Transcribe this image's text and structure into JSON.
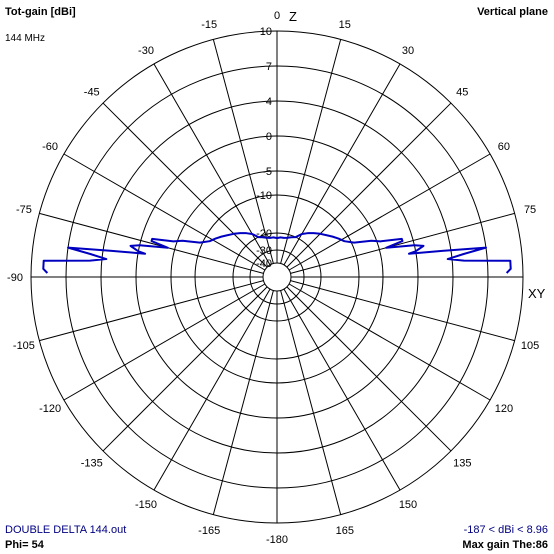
{
  "header": {
    "title": "Tot-gain [dBi]",
    "plane": "Vertical plane",
    "frequency": "144 MHz"
  },
  "footer": {
    "file": "DOUBLE DELTA 144.out",
    "phi": "Phi= 54",
    "range": "-187 < dBi < 8.96",
    "max_gain": "Max gain The:86"
  },
  "colors": {
    "pattern": "#0000c0",
    "grid": "#000000",
    "file_text": "#000080",
    "background": "#ffffff"
  },
  "chart_data": {
    "type": "polar",
    "angle_unit": "degrees",
    "axis_labels": {
      "vertical": "Z",
      "horizontal": "XY"
    },
    "angle_ticks": [
      {
        "deg": 0,
        "label": "0"
      },
      {
        "deg": 15,
        "label": "15"
      },
      {
        "deg": 30,
        "label": "30"
      },
      {
        "deg": 45,
        "label": "45"
      },
      {
        "deg": 60,
        "label": "60"
      },
      {
        "deg": 75,
        "label": "75"
      },
      {
        "deg": 90,
        "label": ""
      },
      {
        "deg": 105,
        "label": "105"
      },
      {
        "deg": 120,
        "label": "120"
      },
      {
        "deg": 135,
        "label": "135"
      },
      {
        "deg": 150,
        "label": "150"
      },
      {
        "deg": 165,
        "label": "165"
      },
      {
        "deg": 180,
        "label": "-180"
      },
      {
        "deg": -165,
        "label": "-165"
      },
      {
        "deg": -150,
        "label": "-150"
      },
      {
        "deg": -135,
        "label": "-135"
      },
      {
        "deg": -120,
        "label": "-120"
      },
      {
        "deg": -105,
        "label": "-105"
      },
      {
        "deg": -90,
        "label": "-90"
      },
      {
        "deg": -75,
        "label": "-75"
      },
      {
        "deg": -60,
        "label": "-60"
      },
      {
        "deg": -45,
        "label": "-45"
      },
      {
        "deg": -30,
        "label": "-30"
      },
      {
        "deg": -15,
        "label": "-15"
      }
    ],
    "gain_rings": [
      {
        "gain": 10,
        "label": "10"
      },
      {
        "gain": 7,
        "label": "7"
      },
      {
        "gain": 4,
        "label": "4"
      },
      {
        "gain": 0,
        "label": "0"
      },
      {
        "gain": -5,
        "label": "-5"
      },
      {
        "gain": -10,
        "label": "-10"
      },
      {
        "gain": -20,
        "label": "-20"
      },
      {
        "gain": -30,
        "label": "-30"
      },
      {
        "gain": -40,
        "label": "-40"
      }
    ],
    "series": [
      {
        "points": [
          {
            "theta": 89,
            "gain": 8.6
          },
          {
            "theta": 88,
            "gain": 8.96
          },
          {
            "theta": 86,
            "gain": 8.96
          },
          {
            "theta": 85,
            "gain": 5.0
          },
          {
            "theta": 84,
            "gain": 3.5
          },
          {
            "theta": 83,
            "gain": 5.0
          },
          {
            "theta": 82,
            "gain": 7.0
          },
          {
            "theta": 81,
            "gain": 3.0
          },
          {
            "theta": 80,
            "gain": -1.0
          },
          {
            "theta": 79.5,
            "gain": 0.0
          },
          {
            "theta": 78,
            "gain": 1.0
          },
          {
            "theta": 77,
            "gain": 0.0
          },
          {
            "theta": 75,
            "gain": -4.0
          },
          {
            "theta": 74,
            "gain": -1.5
          },
          {
            "theta": 73,
            "gain": -1.5
          },
          {
            "theta": 71,
            "gain": -4.5
          },
          {
            "theta": 69,
            "gain": -6.0
          },
          {
            "theta": 66,
            "gain": -9.5
          },
          {
            "theta": 62,
            "gain": -11.5
          },
          {
            "theta": 58,
            "gain": -12.5
          },
          {
            "theta": 54,
            "gain": -13.5
          },
          {
            "theta": 50,
            "gain": -14.5
          },
          {
            "theta": 45,
            "gain": -15.5
          },
          {
            "theta": 40,
            "gain": -16.5
          },
          {
            "theta": 35,
            "gain": -17.5
          },
          {
            "theta": 30,
            "gain": -18.5
          },
          {
            "theta": 25,
            "gain": -20.0
          },
          {
            "theta": 20,
            "gain": -21.0
          },
          {
            "theta": 15,
            "gain": -22.0
          },
          {
            "theta": 10,
            "gain": -22.5
          },
          {
            "theta": 5,
            "gain": -22.5
          },
          {
            "theta": 0,
            "gain": -23.0
          },
          {
            "theta": -5,
            "gain": -22.5
          },
          {
            "theta": -10,
            "gain": -22.5
          },
          {
            "theta": -15,
            "gain": -22.0
          },
          {
            "theta": -20,
            "gain": -21.0
          },
          {
            "theta": -25,
            "gain": -20.0
          },
          {
            "theta": -30,
            "gain": -18.5
          },
          {
            "theta": -35,
            "gain": -17.5
          },
          {
            "theta": -40,
            "gain": -16.5
          },
          {
            "theta": -45,
            "gain": -15.5
          },
          {
            "theta": -50,
            "gain": -14.5
          },
          {
            "theta": -54,
            "gain": -13.5
          },
          {
            "theta": -58,
            "gain": -12.5
          },
          {
            "theta": -62,
            "gain": -11.5
          },
          {
            "theta": -66,
            "gain": -9.5
          },
          {
            "theta": -69,
            "gain": -6.0
          },
          {
            "theta": -71,
            "gain": -4.5
          },
          {
            "theta": -73,
            "gain": -1.5
          },
          {
            "theta": -74,
            "gain": -1.5
          },
          {
            "theta": -75,
            "gain": -4.0
          },
          {
            "theta": -77,
            "gain": 0.0
          },
          {
            "theta": -78,
            "gain": 1.0
          },
          {
            "theta": -79.5,
            "gain": 0.0
          },
          {
            "theta": -80,
            "gain": -1.0
          },
          {
            "theta": -81,
            "gain": 3.0
          },
          {
            "theta": -82,
            "gain": 7.0
          },
          {
            "theta": -83,
            "gain": 5.0
          },
          {
            "theta": -84,
            "gain": 3.5
          },
          {
            "theta": -85,
            "gain": 5.0
          },
          {
            "theta": -86,
            "gain": 8.96
          },
          {
            "theta": -88,
            "gain": 8.96
          },
          {
            "theta": -89,
            "gain": 8.6
          }
        ]
      }
    ]
  }
}
